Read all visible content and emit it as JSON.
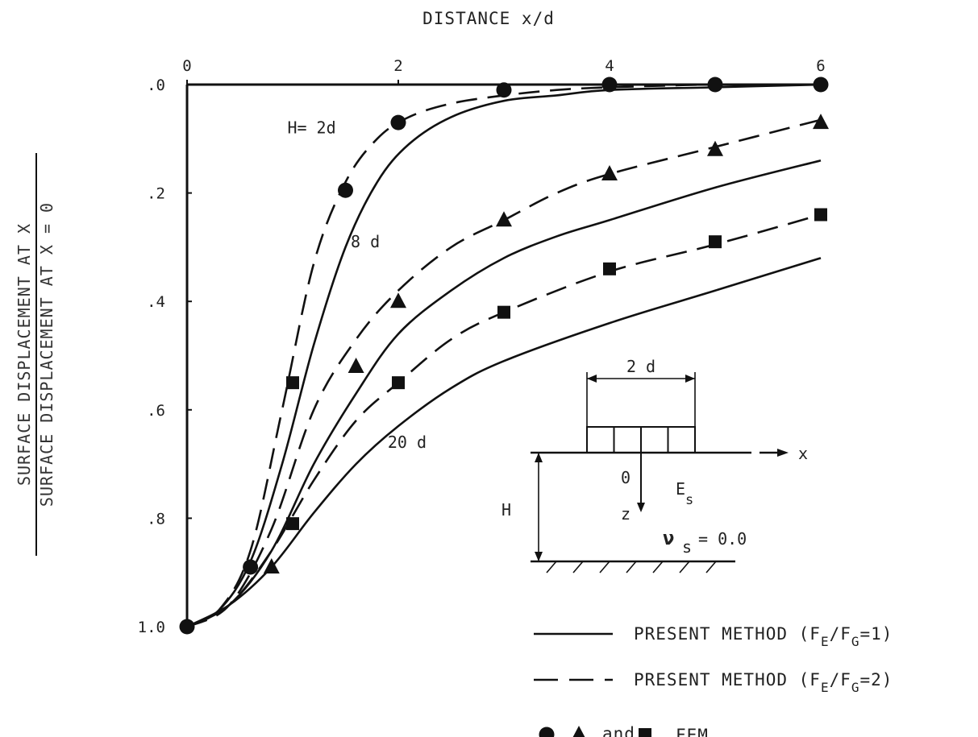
{
  "chart_data": {
    "type": "line",
    "xlabel": "DISTANCE  x/d",
    "ylabel_numerator": "SURFACE DISPLACEMENT AT X",
    "ylabel_denominator": "SURFACE DISPLACEMENT AT X = 0",
    "xlim": [
      0,
      6
    ],
    "ylim": [
      1.0,
      0.0
    ],
    "x_axis_position": "top",
    "y_axis_inverted": true,
    "grid": false,
    "x_ticks": [
      {
        "v": 0,
        "label": "0"
      },
      {
        "v": 2,
        "label": "2"
      },
      {
        "v": 4,
        "label": "4"
      },
      {
        "v": 6,
        "label": "6"
      }
    ],
    "y_ticks": [
      {
        "v": 0.0,
        "label": ".0"
      },
      {
        "v": 0.2,
        "label": ".2"
      },
      {
        "v": 0.4,
        "label": ".4"
      },
      {
        "v": 0.6,
        "label": ".6"
      },
      {
        "v": 0.8,
        "label": ".8"
      },
      {
        "v": 1.0,
        "label": "1.0"
      }
    ],
    "series": [
      {
        "name": "H = 2d, PRESENT METHOD (FE/FG=1)",
        "style": "solid",
        "x": [
          0,
          0.3,
          0.6,
          0.9,
          1.2,
          1.5,
          1.8,
          2.1,
          2.5,
          3.0,
          3.5,
          4.0,
          5.0,
          6.0
        ],
        "y": [
          1.0,
          0.97,
          0.88,
          0.7,
          0.48,
          0.3,
          0.18,
          0.11,
          0.06,
          0.03,
          0.02,
          0.01,
          0.005,
          0.0
        ]
      },
      {
        "name": "H = 2d, PRESENT METHOD (FE/FG=2)",
        "style": "dashed",
        "x": [
          0,
          0.3,
          0.6,
          0.9,
          1.2,
          1.5,
          1.8,
          2.1,
          2.5,
          3.0,
          3.5,
          4.0,
          5.0,
          6.0
        ],
        "y": [
          1.0,
          0.97,
          0.86,
          0.6,
          0.33,
          0.18,
          0.1,
          0.06,
          0.035,
          0.02,
          0.01,
          0.005,
          0.0,
          0.0
        ]
      },
      {
        "name": "H = 8d, PRESENT METHOD (FE/FG=1)",
        "style": "solid",
        "x": [
          0,
          0.4,
          0.8,
          1.2,
          1.6,
          2.0,
          2.5,
          3.0,
          3.5,
          4.0,
          5.0,
          6.0
        ],
        "y": [
          1.0,
          0.96,
          0.86,
          0.7,
          0.57,
          0.46,
          0.38,
          0.32,
          0.28,
          0.25,
          0.19,
          0.14
        ]
      },
      {
        "name": "H = 8d, PRESENT METHOD (FE/FG=2)",
        "style": "dashed",
        "x": [
          0,
          0.4,
          0.8,
          1.2,
          1.6,
          2.0,
          2.5,
          3.0,
          3.5,
          4.0,
          5.0,
          6.0
        ],
        "y": [
          1.0,
          0.96,
          0.82,
          0.6,
          0.47,
          0.38,
          0.3,
          0.25,
          0.2,
          0.165,
          0.115,
          0.065
        ]
      },
      {
        "name": "H = 20d, PRESENT METHOD (FE/FG=1)",
        "style": "solid",
        "x": [
          0,
          0.4,
          0.8,
          1.2,
          1.6,
          2.0,
          2.5,
          3.0,
          4.0,
          5.0,
          6.0
        ],
        "y": [
          1.0,
          0.96,
          0.89,
          0.79,
          0.7,
          0.63,
          0.56,
          0.51,
          0.44,
          0.38,
          0.32
        ]
      },
      {
        "name": "H = 20d, PRESENT METHOD (FE/FG=2)",
        "style": "dashed",
        "x": [
          0,
          0.4,
          0.8,
          1.2,
          1.6,
          2.0,
          2.5,
          3.0,
          4.0,
          5.0,
          6.0
        ],
        "y": [
          1.0,
          0.96,
          0.86,
          0.73,
          0.62,
          0.55,
          0.47,
          0.42,
          0.345,
          0.295,
          0.24
        ]
      }
    ],
    "fem_points": [
      {
        "marker": "circle",
        "name": "FEM H=2d",
        "x": [
          0,
          0.6,
          1.5,
          2.0,
          3.0,
          4.0,
          5.0,
          6.0
        ],
        "y": [
          1.0,
          0.89,
          0.195,
          0.07,
          0.01,
          0.0,
          0.0,
          0.0
        ]
      },
      {
        "marker": "triangle",
        "name": "FEM H=8d",
        "x": [
          0.8,
          1.6,
          2.0,
          3.0,
          4.0,
          5.0,
          6.0
        ],
        "y": [
          0.89,
          0.52,
          0.4,
          0.25,
          0.165,
          0.12,
          0.07
        ]
      },
      {
        "marker": "square",
        "name": "FEM H=20d",
        "x": [
          1.0,
          1.0,
          2.0,
          3.0,
          4.0,
          5.0,
          6.0
        ],
        "y": [
          0.81,
          0.55,
          0.55,
          0.42,
          0.34,
          0.29,
          0.24
        ]
      }
    ],
    "annotations": [
      {
        "text": "H= 2d",
        "x": 0.95,
        "y": 0.09
      },
      {
        "text": "8 d",
        "x": 1.55,
        "y": 0.3
      },
      {
        "text": "20 d",
        "x": 1.9,
        "y": 0.67
      }
    ],
    "inset": {
      "width_label": "2 d",
      "x_label": "x",
      "origin_label": "0",
      "z_label": "z",
      "depth_label": "H",
      "modulus_label": "E",
      "modulus_sub": "s",
      "poisson_symbol": "ν",
      "poisson_sub": "s",
      "poisson_value": "= 0.0"
    },
    "legend": [
      {
        "style": "solid",
        "text": "PRESENT METHOD (F",
        "sub1": "E",
        "mid": "/F",
        "sub2": "G",
        "end": "=1)"
      },
      {
        "style": "dashed",
        "text": "PRESENT METHOD (F",
        "sub1": "E",
        "mid": "/F",
        "sub2": "G",
        "end": "=2)"
      },
      {
        "style": "markers",
        "text_and": "and",
        "text_fem": "FEM",
        "comma": ","
      }
    ]
  }
}
